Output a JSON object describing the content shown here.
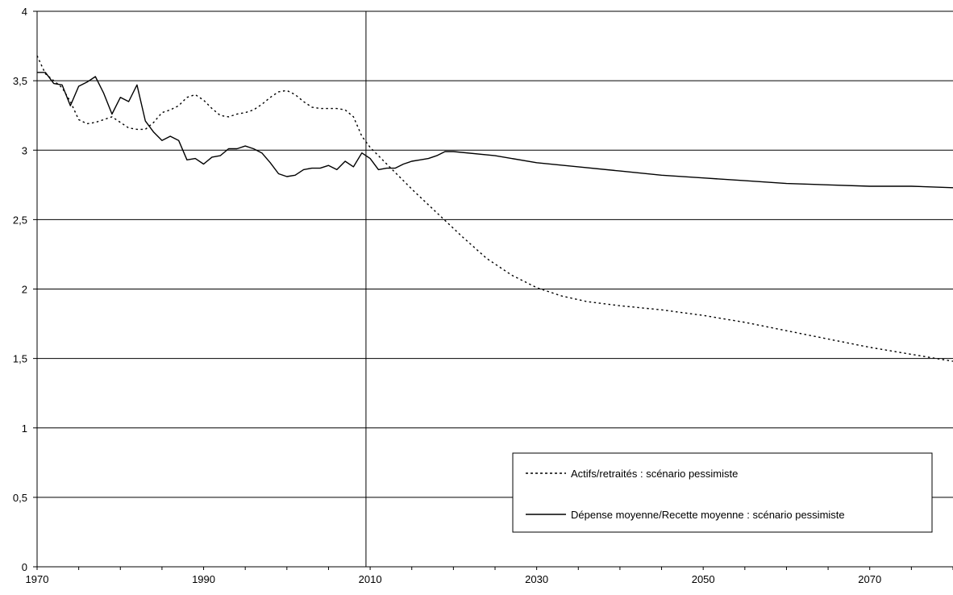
{
  "chart_data": {
    "type": "line",
    "title": "",
    "xlabel": "",
    "ylabel": "",
    "xlim": [
      1970,
      2080
    ],
    "ylim": [
      0,
      4
    ],
    "x_ticks": [
      1970,
      1990,
      2010,
      2030,
      2050,
      2070
    ],
    "x_tick_labels": [
      "1970",
      "1990",
      "2010",
      "2030",
      "2050",
      "2070"
    ],
    "y_ticks": [
      0,
      0.5,
      1,
      1.5,
      2,
      2.5,
      3,
      3.5,
      4
    ],
    "y_tick_labels": [
      "0",
      "0,5",
      "1",
      "1,5",
      "2",
      "2,5",
      "3",
      "3,5",
      "4"
    ],
    "grid": "horizontal",
    "vertical_marker_x": 2009.5,
    "legend_position": "bottom-right",
    "colors": {
      "line": "#000000",
      "grid": "#000000",
      "background": "#ffffff"
    },
    "series": [
      {
        "name": "Actifs/retraités : scénario pessimiste",
        "style": "dotted",
        "points": [
          [
            1970,
            3.68
          ],
          [
            1971,
            3.55
          ],
          [
            1972,
            3.5
          ],
          [
            1973,
            3.45
          ],
          [
            1974,
            3.35
          ],
          [
            1975,
            3.22
          ],
          [
            1976,
            3.19
          ],
          [
            1977,
            3.2
          ],
          [
            1978,
            3.22
          ],
          [
            1979,
            3.24
          ],
          [
            1980,
            3.2
          ],
          [
            1981,
            3.16
          ],
          [
            1982,
            3.15
          ],
          [
            1983,
            3.15
          ],
          [
            1984,
            3.2
          ],
          [
            1985,
            3.27
          ],
          [
            1986,
            3.29
          ],
          [
            1987,
            3.32
          ],
          [
            1988,
            3.38
          ],
          [
            1989,
            3.4
          ],
          [
            1990,
            3.36
          ],
          [
            1991,
            3.3
          ],
          [
            1992,
            3.25
          ],
          [
            1993,
            3.24
          ],
          [
            1994,
            3.26
          ],
          [
            1995,
            3.27
          ],
          [
            1996,
            3.29
          ],
          [
            1997,
            3.33
          ],
          [
            1998,
            3.38
          ],
          [
            1999,
            3.42
          ],
          [
            2000,
            3.43
          ],
          [
            2001,
            3.4
          ],
          [
            2002,
            3.35
          ],
          [
            2003,
            3.31
          ],
          [
            2004,
            3.3
          ],
          [
            2005,
            3.3
          ],
          [
            2006,
            3.3
          ],
          [
            2007,
            3.29
          ],
          [
            2008,
            3.24
          ],
          [
            2009,
            3.1
          ],
          [
            2010,
            3.02
          ],
          [
            2012,
            2.9
          ],
          [
            2015,
            2.72
          ],
          [
            2018,
            2.55
          ],
          [
            2021,
            2.38
          ],
          [
            2024,
            2.22
          ],
          [
            2027,
            2.1
          ],
          [
            2030,
            2.01
          ],
          [
            2033,
            1.95
          ],
          [
            2036,
            1.91
          ],
          [
            2040,
            1.88
          ],
          [
            2045,
            1.85
          ],
          [
            2050,
            1.81
          ],
          [
            2055,
            1.76
          ],
          [
            2060,
            1.7
          ],
          [
            2065,
            1.64
          ],
          [
            2070,
            1.58
          ],
          [
            2075,
            1.53
          ],
          [
            2080,
            1.48
          ]
        ]
      },
      {
        "name": "Dépense moyenne/Recette moyenne : scénario pessimiste",
        "style": "solid",
        "points": [
          [
            1970,
            3.56
          ],
          [
            1971,
            3.56
          ],
          [
            1972,
            3.48
          ],
          [
            1973,
            3.47
          ],
          [
            1974,
            3.32
          ],
          [
            1975,
            3.46
          ],
          [
            1976,
            3.49
          ],
          [
            1977,
            3.53
          ],
          [
            1978,
            3.41
          ],
          [
            1979,
            3.26
          ],
          [
            1980,
            3.38
          ],
          [
            1981,
            3.35
          ],
          [
            1982,
            3.47
          ],
          [
            1983,
            3.21
          ],
          [
            1984,
            3.13
          ],
          [
            1985,
            3.07
          ],
          [
            1986,
            3.1
          ],
          [
            1987,
            3.07
          ],
          [
            1988,
            2.93
          ],
          [
            1989,
            2.94
          ],
          [
            1990,
            2.9
          ],
          [
            1991,
            2.95
          ],
          [
            1992,
            2.96
          ],
          [
            1993,
            3.01
          ],
          [
            1994,
            3.01
          ],
          [
            1995,
            3.03
          ],
          [
            1996,
            3.01
          ],
          [
            1997,
            2.98
          ],
          [
            1998,
            2.91
          ],
          [
            1999,
            2.83
          ],
          [
            2000,
            2.81
          ],
          [
            2001,
            2.82
          ],
          [
            2002,
            2.86
          ],
          [
            2003,
            2.87
          ],
          [
            2004,
            2.87
          ],
          [
            2005,
            2.89
          ],
          [
            2006,
            2.86
          ],
          [
            2007,
            2.92
          ],
          [
            2008,
            2.88
          ],
          [
            2009,
            2.98
          ],
          [
            2010,
            2.94
          ],
          [
            2011,
            2.86
          ],
          [
            2012,
            2.87
          ],
          [
            2013,
            2.87
          ],
          [
            2014,
            2.9
          ],
          [
            2015,
            2.92
          ],
          [
            2016,
            2.93
          ],
          [
            2017,
            2.94
          ],
          [
            2018,
            2.96
          ],
          [
            2019,
            2.99
          ],
          [
            2020,
            2.99
          ],
          [
            2025,
            2.96
          ],
          [
            2030,
            2.91
          ],
          [
            2035,
            2.88
          ],
          [
            2040,
            2.85
          ],
          [
            2045,
            2.82
          ],
          [
            2050,
            2.8
          ],
          [
            2055,
            2.78
          ],
          [
            2060,
            2.76
          ],
          [
            2065,
            2.75
          ],
          [
            2070,
            2.74
          ],
          [
            2075,
            2.74
          ],
          [
            2080,
            2.73
          ]
        ]
      }
    ]
  }
}
